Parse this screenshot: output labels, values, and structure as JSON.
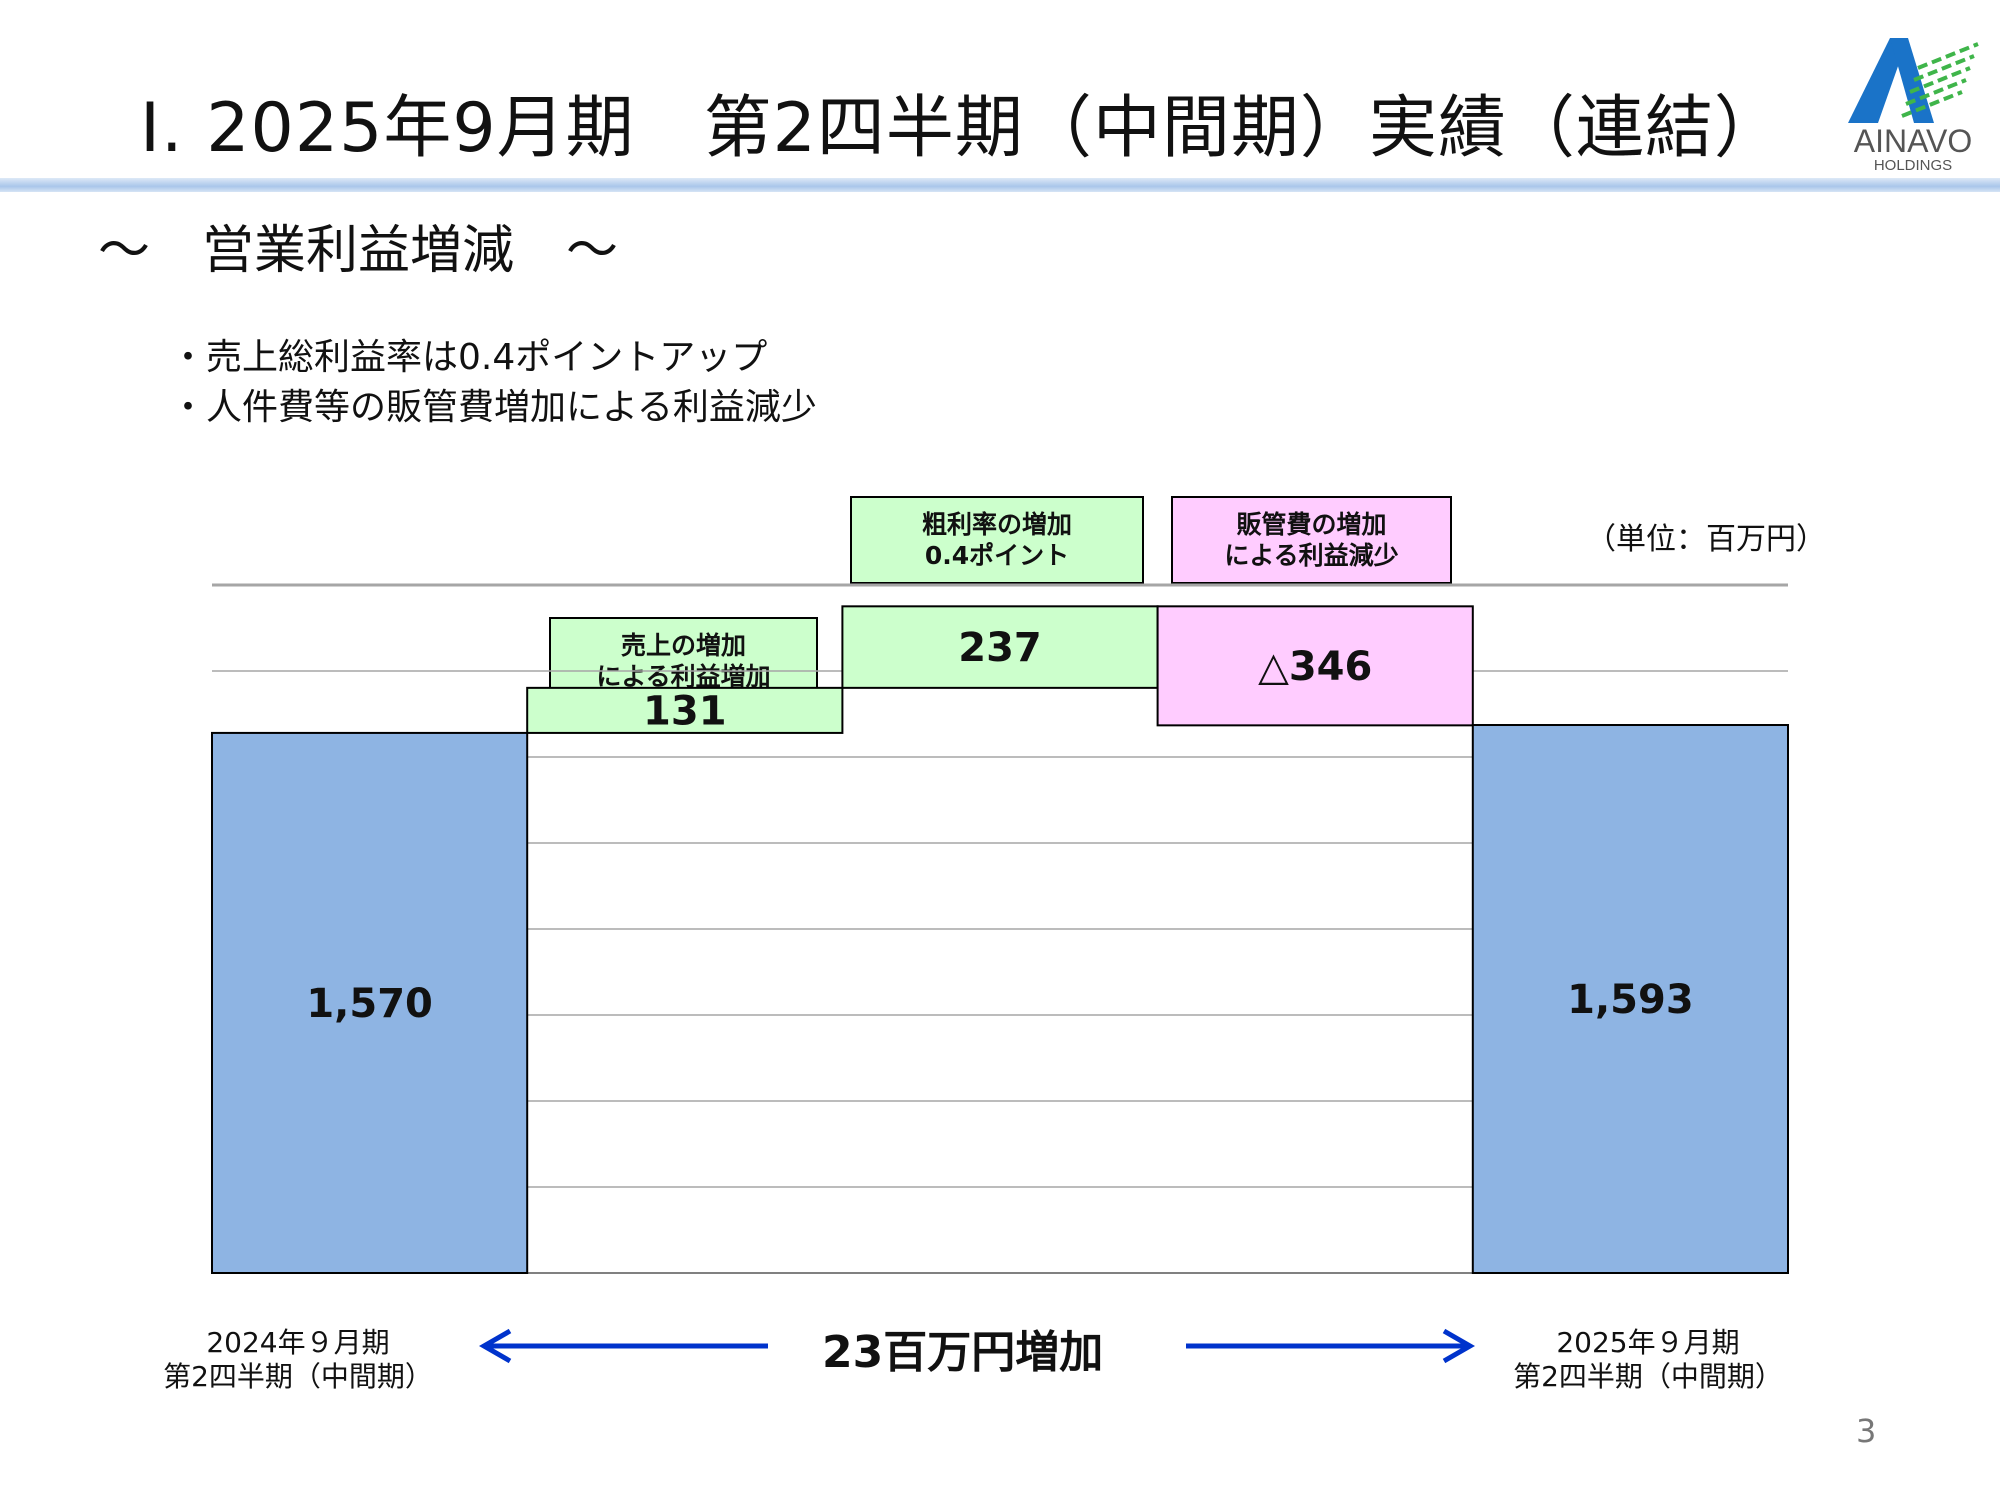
{
  "header": {
    "title": "Ⅰ. 2025年9月期　第2四半期（中間期）実績（連結）",
    "logo": {
      "name": "AINAVO",
      "sub": "HOLDINGS",
      "colors": {
        "blue": "#1a73c8",
        "green": "#3fb54a",
        "text": "#555555"
      }
    }
  },
  "subtitle": "～　営業利益増減　～",
  "bullets": [
    "・売上総利益率は0.4ポイントアップ",
    "・人件費等の販管費増加による利益減少"
  ],
  "unit_label": "（単位：百万円）",
  "callouts": [
    {
      "line1": "売上の増加",
      "line2": "による利益増加",
      "color": "#ccffcc"
    },
    {
      "line1": "粗利率の増加",
      "line2": "0.4ポイント",
      "color": "#ccffcc"
    },
    {
      "line1": "販管費の増加",
      "line2": "による利益減少",
      "color": "#ffccff"
    }
  ],
  "chart_data": {
    "type": "bar",
    "subtype": "waterfall",
    "categories": [
      "2024年９月期\n第2四半期（中間期）",
      "",
      "",
      "",
      "2025年９月期\n第2四半期（中間期）"
    ],
    "steps": [
      {
        "label": "1,570",
        "value": 1570,
        "kind": "total",
        "color": "#8eb4e3"
      },
      {
        "label": "131",
        "value": 131,
        "kind": "increase",
        "color": "#ccffcc"
      },
      {
        "label": "237",
        "value": 237,
        "kind": "increase",
        "color": "#ccffcc"
      },
      {
        "label": "△346",
        "value": -346,
        "kind": "decrease",
        "color": "#ffccff"
      },
      {
        "label": "1,593",
        "value": 1593,
        "kind": "total",
        "color": "#8eb4e3"
      }
    ],
    "ylim": [
      0,
      2000
    ],
    "grid_step": 250,
    "grid": true,
    "legend": "none"
  },
  "x_labels": [
    {
      "line1": "2024年９月期",
      "line2": "第2四半期（中間期）"
    },
    {
      "line1": "2025年９月期",
      "line2": "第2四半期（中間期）"
    }
  ],
  "footer": {
    "diff_text": "23百万円増加",
    "arrow_color": "#0033cc"
  },
  "page_number": "3"
}
